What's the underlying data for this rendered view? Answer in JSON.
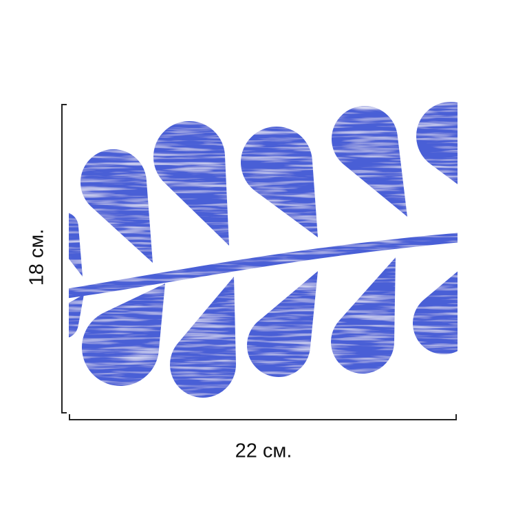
{
  "dimensions": {
    "height_label": "18 см.",
    "width_label": "22 см."
  }
}
